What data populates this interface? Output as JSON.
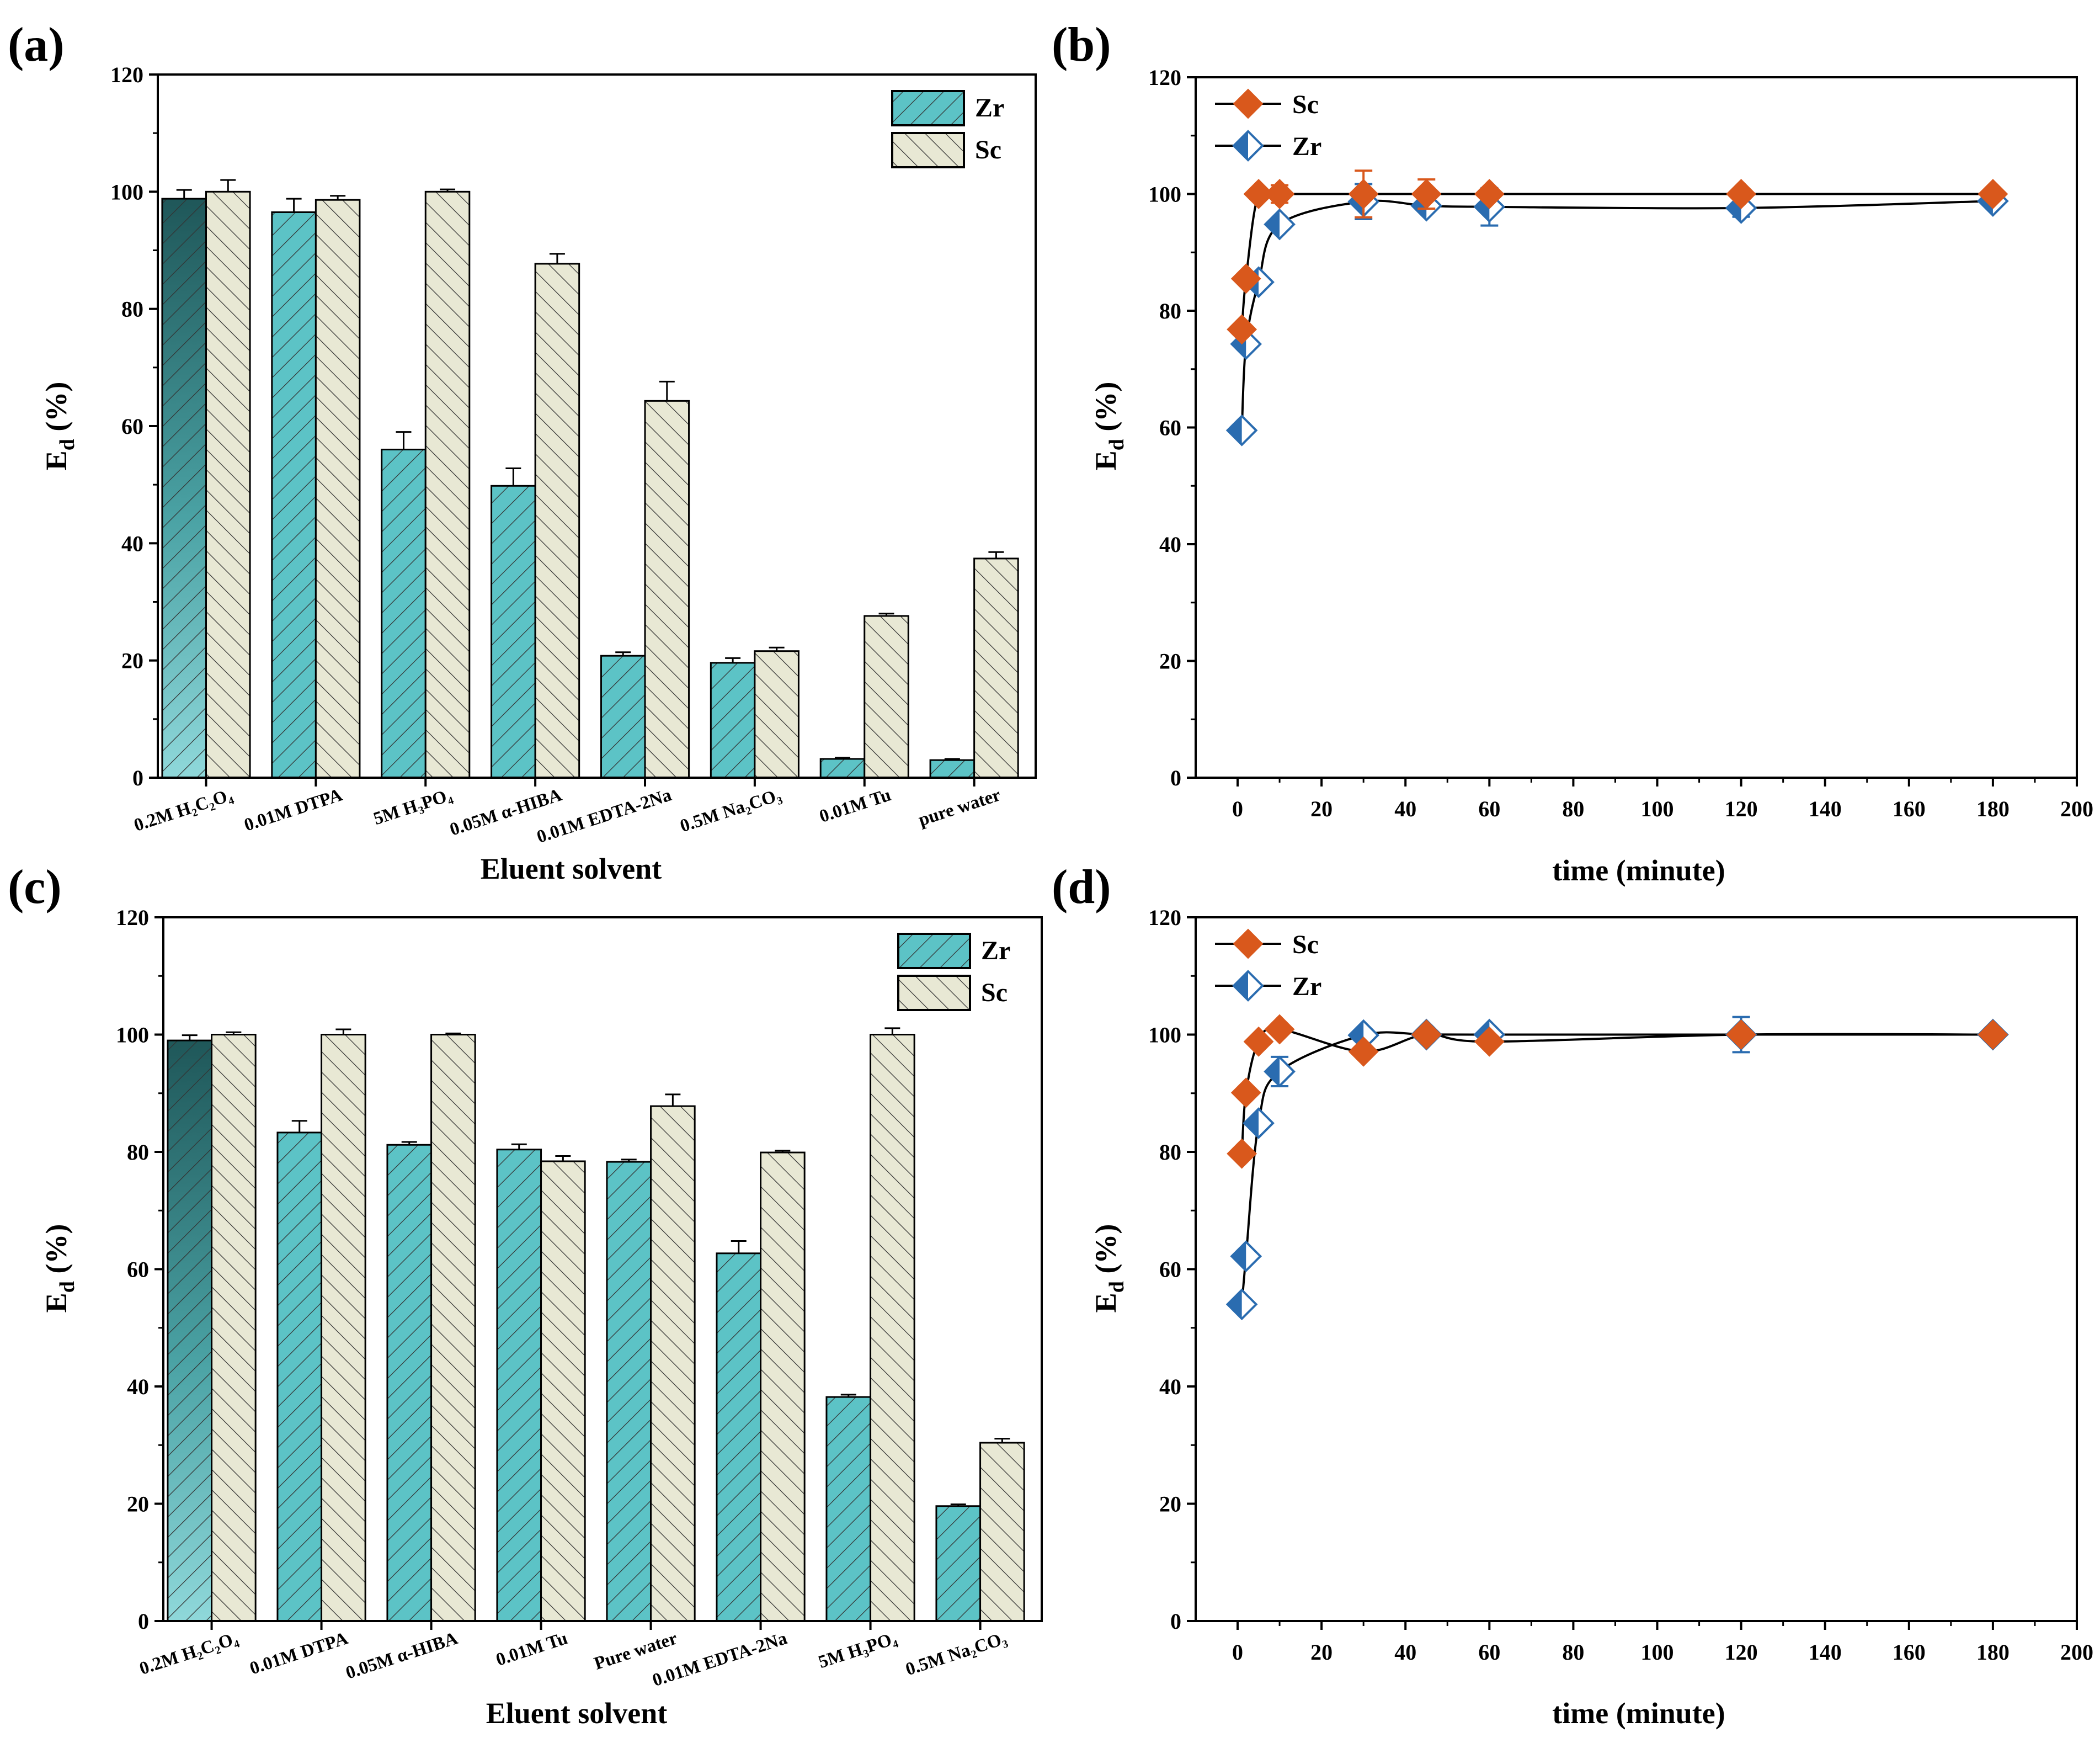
{
  "colors": {
    "zr_bar": "#5cc3c6",
    "zr_bar_dark": "#2e6a6c",
    "sc_bar": "#e8e8d4",
    "sc_marker": "#d9581c",
    "zr_marker": "#2a6cb0",
    "hatch": "#333333"
  },
  "chart_data": [
    {
      "id": "a",
      "panel_label": "(a)",
      "type": "bar",
      "xlabel": "Eluent solvent",
      "ylabel": "Ed (%)",
      "ylabel_main": "E",
      "ylabel_sub": "d",
      "ylabel_rest": " (%)",
      "ylim": [
        0,
        120
      ],
      "yticks": [
        "0",
        "20",
        "40",
        "60",
        "80",
        "100",
        "120"
      ],
      "categories": [
        "0.2M H₂C₂O₄",
        "0.01M DTPA",
        "5M H₃PO₄",
        "0.05M α-HIBA",
        "0.01M EDTA-2Na",
        "0.5M Na₂CO₃",
        "0.01M Tu",
        "pure water"
      ],
      "series": [
        {
          "name": "Zr",
          "values": [
            98.8,
            96.5,
            56,
            49.8,
            20.8,
            19.6,
            3.2,
            3
          ],
          "errors": [
            1.5,
            2.3,
            3,
            3,
            0.6,
            0.8,
            0.2,
            0.2
          ]
        },
        {
          "name": "Sc",
          "values": [
            100,
            98.6,
            100,
            87.7,
            64.3,
            21.6,
            27.6,
            37.4
          ],
          "errors": [
            2,
            0.7,
            0.4,
            1.7,
            3.3,
            0.6,
            0.4,
            1.1
          ]
        }
      ],
      "legend": [
        "Zr",
        "Sc"
      ]
    },
    {
      "id": "b",
      "panel_label": "(b)",
      "type": "line",
      "xlabel": "time (minute)",
      "ylabel": "Ed (%)",
      "ylabel_main": "E",
      "ylabel_sub": "d",
      "ylabel_rest": " (%)",
      "xlim": [
        -10,
        200
      ],
      "ylim": [
        0,
        120
      ],
      "xticks": [
        "0",
        "20",
        "40",
        "60",
        "80",
        "100",
        "120",
        "140",
        "160",
        "180",
        "200"
      ],
      "yticks": [
        "0",
        "20",
        "40",
        "60",
        "80",
        "100",
        "120"
      ],
      "series": [
        {
          "name": "Sc",
          "x": [
            1,
            2,
            5,
            10,
            30,
            45,
            60,
            120,
            180
          ],
          "y": [
            76.8,
            85.5,
            100,
            100,
            100,
            100,
            100,
            100,
            100
          ],
          "errors": [
            0,
            0,
            0,
            1.5,
            4,
            2.5,
            0.5,
            0.5,
            0.3
          ]
        },
        {
          "name": "Zr",
          "x": [
            1,
            2,
            5,
            10,
            30,
            45,
            60,
            120,
            180
          ],
          "y": [
            59.5,
            74.3,
            84.9,
            94.8,
            98.7,
            98,
            97.8,
            97.6,
            98.8
          ],
          "errors": [
            0,
            0,
            0,
            0,
            3,
            1,
            3.2,
            1.5,
            1
          ]
        }
      ],
      "legend": [
        "Sc",
        "Zr"
      ]
    },
    {
      "id": "c",
      "panel_label": "(c)",
      "type": "bar",
      "xlabel": "Eluent solvent",
      "ylabel": "Ed (%)",
      "ylabel_main": "E",
      "ylabel_sub": "d",
      "ylabel_rest": " (%)",
      "ylim": [
        0,
        120
      ],
      "yticks": [
        "0",
        "20",
        "40",
        "60",
        "80",
        "100",
        "120"
      ],
      "categories": [
        "0.2M H₂C₂O₄",
        "0.01M DTPA",
        "0.05M α-HIBA",
        "0.01M Tu",
        "Pure water",
        "0.01M EDTA-2Na",
        "5M H₃PO₄",
        "0.5M Na₂CO₃"
      ],
      "series": [
        {
          "name": "Zr",
          "values": [
            99,
            83.3,
            81.2,
            80.4,
            78.3,
            62.7,
            38.2,
            19.6
          ],
          "errors": [
            0.9,
            2,
            0.5,
            0.9,
            0.4,
            2.1,
            0.4,
            0.3
          ]
        },
        {
          "name": "Sc",
          "values": [
            100,
            100,
            100,
            78.4,
            87.8,
            79.9,
            100,
            30.4
          ],
          "errors": [
            0.4,
            0.9,
            0.2,
            0.9,
            2,
            0.3,
            1.1,
            0.7
          ]
        }
      ],
      "legend": [
        "Zr",
        "Sc"
      ]
    },
    {
      "id": "d",
      "panel_label": "(d)",
      "type": "line",
      "xlabel": "time (minute)",
      "ylabel": "Ed (%)",
      "ylabel_main": "E",
      "ylabel_sub": "d",
      "ylabel_rest": " (%)",
      "xlim": [
        -10,
        200
      ],
      "ylim": [
        0,
        120
      ],
      "xticks": [
        "0",
        "20",
        "40",
        "60",
        "80",
        "100",
        "120",
        "140",
        "160",
        "180",
        "200"
      ],
      "yticks": [
        "0",
        "20",
        "40",
        "60",
        "80",
        "100",
        "120"
      ],
      "series": [
        {
          "name": "Sc",
          "x": [
            1,
            2,
            5,
            10,
            30,
            45,
            60,
            120,
            180
          ],
          "y": [
            79.7,
            90.1,
            98.8,
            100.9,
            97.1,
            100,
            98.8,
            100,
            100
          ],
          "errors": [
            0,
            0,
            0,
            0,
            0.5,
            0,
            0.5,
            0.5,
            0.3
          ]
        },
        {
          "name": "Zr",
          "x": [
            1,
            2,
            5,
            10,
            30,
            45,
            60,
            120,
            180
          ],
          "y": [
            54,
            62.2,
            84.9,
            93.7,
            99.9,
            100,
            100,
            100,
            100
          ],
          "errors": [
            0,
            0,
            0,
            2.5,
            0,
            0,
            0,
            3,
            0
          ]
        }
      ],
      "legend": [
        "Sc",
        "Zr"
      ]
    }
  ]
}
